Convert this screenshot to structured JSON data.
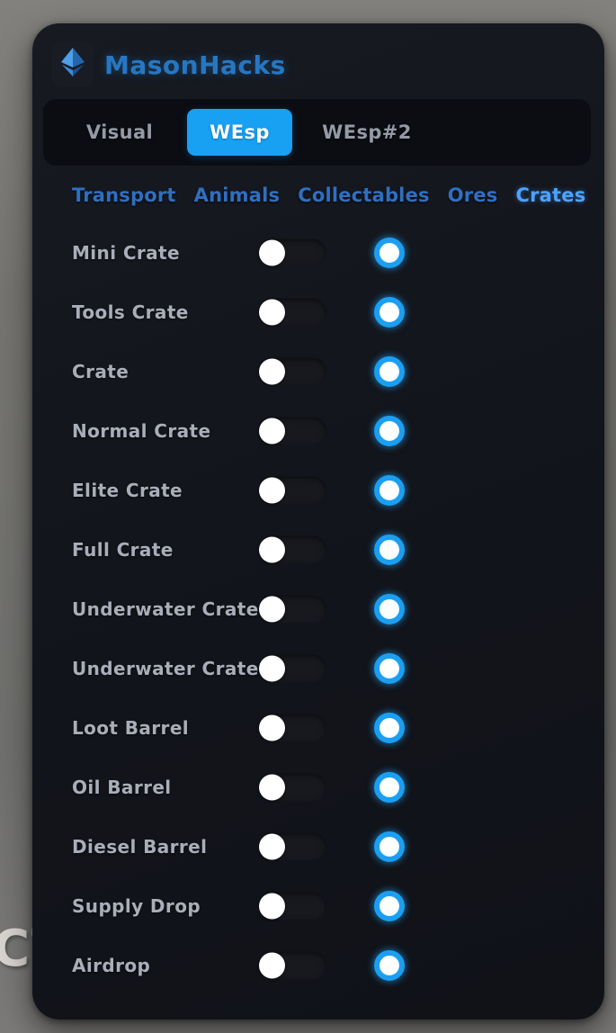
{
  "app": {
    "title": "MasonHacks",
    "logo": "diamond-logo-icon"
  },
  "background": {
    "clipped_text": "CT"
  },
  "tabs": [
    {
      "label": "Visual",
      "active": false
    },
    {
      "label": "WEsp",
      "active": true
    },
    {
      "label": "WEsp#2",
      "active": false
    }
  ],
  "subtabs": [
    {
      "label": "Transport",
      "active": false
    },
    {
      "label": "Animals",
      "active": false
    },
    {
      "label": "Collectables",
      "active": false
    },
    {
      "label": "Ores",
      "active": false
    },
    {
      "label": "Crates",
      "active": true
    }
  ],
  "rows": [
    {
      "label": "Mini Crate",
      "enabled": false,
      "color": "#1b9ff2"
    },
    {
      "label": "Tools Crate",
      "enabled": false,
      "color": "#1b9ff2"
    },
    {
      "label": "Crate",
      "enabled": false,
      "color": "#1b9ff2"
    },
    {
      "label": "Normal Crate",
      "enabled": false,
      "color": "#1b9ff2"
    },
    {
      "label": "Elite Crate",
      "enabled": false,
      "color": "#1b9ff2"
    },
    {
      "label": "Full Crate",
      "enabled": false,
      "color": "#1b9ff2"
    },
    {
      "label": "Underwater Crate",
      "enabled": false,
      "color": "#1b9ff2"
    },
    {
      "label": "Underwater Crate",
      "enabled": false,
      "color": "#1b9ff2"
    },
    {
      "label": "Loot Barrel",
      "enabled": false,
      "color": "#1b9ff2"
    },
    {
      "label": "Oil Barrel",
      "enabled": false,
      "color": "#1b9ff2"
    },
    {
      "label": "Diesel Barrel",
      "enabled": false,
      "color": "#1b9ff2"
    },
    {
      "label": "Supply Drop",
      "enabled": false,
      "color": "#1b9ff2"
    },
    {
      "label": "Airdrop",
      "enabled": false,
      "color": "#1b9ff2"
    }
  ],
  "colors": {
    "accent_blue": "#18a0f2",
    "title_blue": "#2677c2",
    "subtab_blue": "#2f6fc1",
    "subtab_active_blue": "#4da2ff",
    "picker_blue": "#1b9ff2",
    "panel_bg": "#14161d",
    "desktop_gray": "#757470"
  }
}
